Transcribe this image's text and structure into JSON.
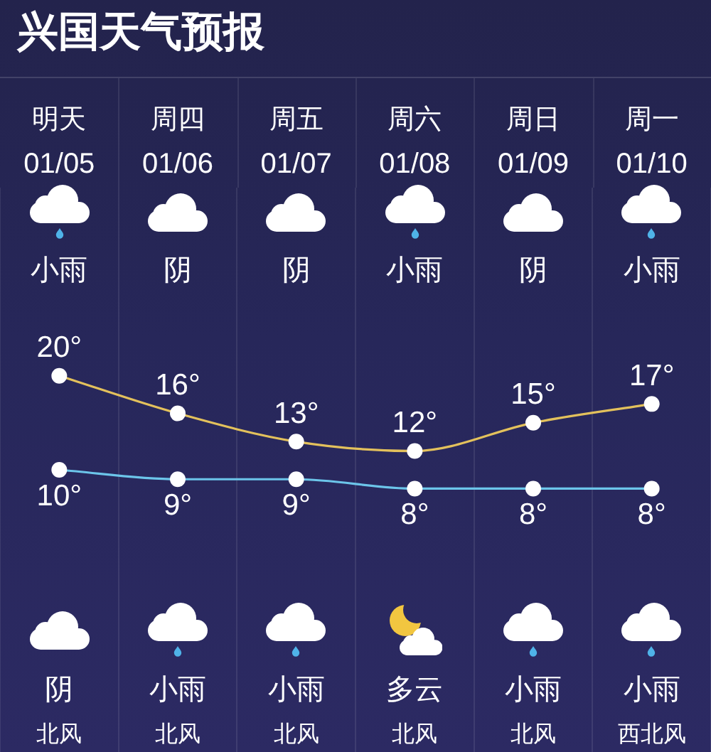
{
  "chart_data": {
    "type": "line",
    "title": "兴国天气预报",
    "categories": [
      "01/05",
      "01/06",
      "01/07",
      "01/08",
      "01/09",
      "01/10"
    ],
    "series": [
      {
        "color": "#e3c15c",
        "values": [
          20,
          16,
          13,
          12,
          15,
          17
        ],
        "value_labels": [
          "20°",
          "16°",
          "13°",
          "12°",
          "15°",
          "17°"
        ]
      },
      {
        "color": "#6cc5ea",
        "values": [
          10,
          9,
          9,
          8,
          8,
          8
        ],
        "value_labels": [
          "10°",
          "9°",
          "9°",
          "8°",
          "8°",
          "8°"
        ]
      }
    ],
    "annotations": [
      "明天",
      "周四",
      "周五",
      "周六",
      "周日",
      "周一",
      "小雨",
      "阴",
      "阴",
      "小雨",
      "阴",
      "小雨",
      "阴",
      "小雨",
      "小雨",
      "多云",
      "小雨",
      "小雨",
      "北风",
      "北风",
      "北风",
      "北风",
      "北风",
      "西北风"
    ],
    "grid": "x",
    "marker": "circle",
    "tick_labels": "x"
  }
}
